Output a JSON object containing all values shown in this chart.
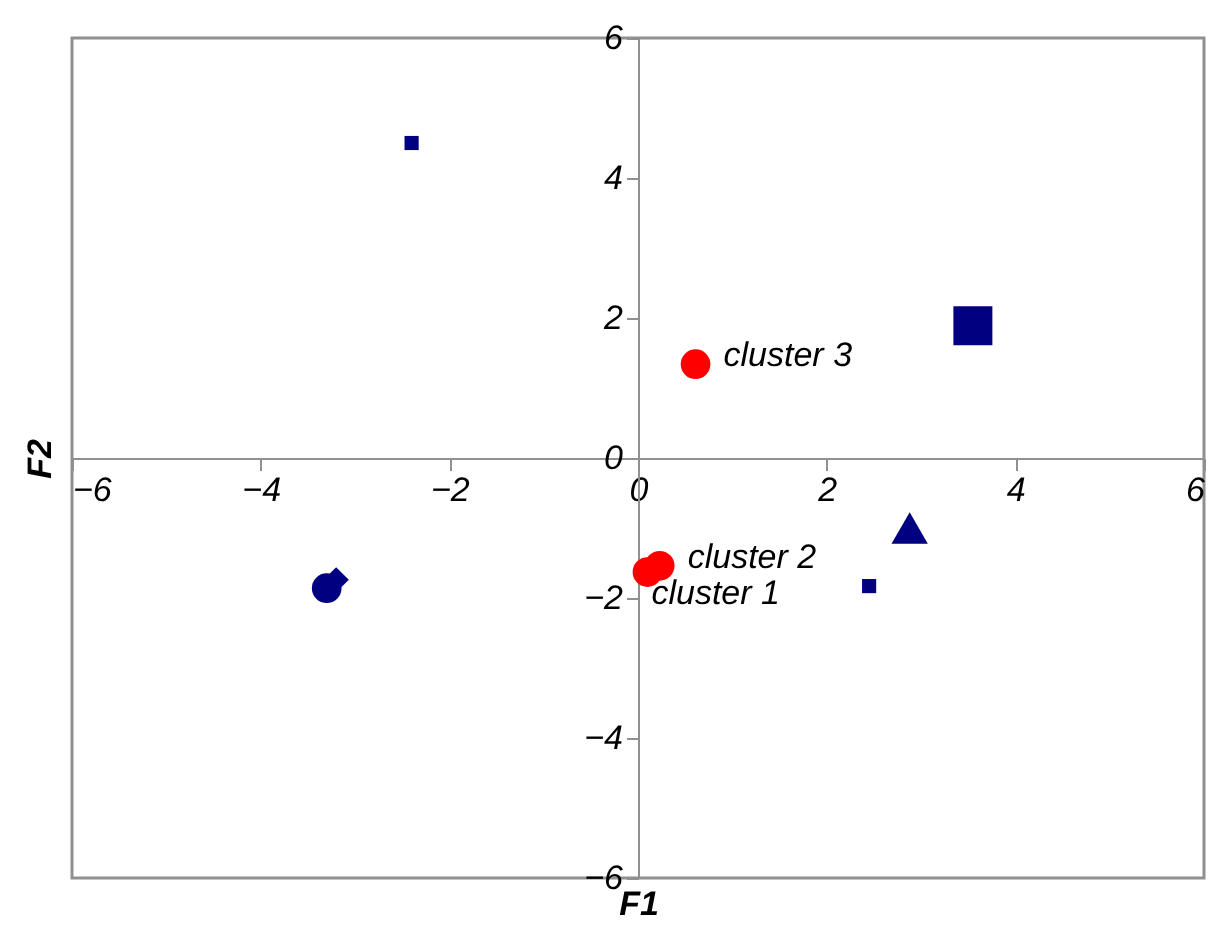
{
  "chart_data": {
    "type": "scatter",
    "xlabel": "F1",
    "ylabel": "F2",
    "xlim": [
      -6,
      6
    ],
    "ylim": [
      -6,
      6
    ],
    "xticks": [
      -6,
      -4,
      -2,
      0,
      2,
      4,
      6
    ],
    "yticks": [
      -6,
      -4,
      -2,
      0,
      2,
      4,
      6
    ],
    "grid": false,
    "series": [
      {
        "color": "#000080",
        "marker": "square",
        "x": [
          -2.4,
          2.45
        ],
        "values": [
          4.5,
          -1.83
        ]
      },
      {
        "color": "#000080",
        "marker": "circle",
        "x": [
          -3.3
        ],
        "values": [
          -1.86
        ]
      },
      {
        "color": "#000080",
        "marker": "diamond",
        "x": [
          -3.2
        ],
        "values": [
          -1.74
        ]
      },
      {
        "color": "#000080",
        "marker": "square",
        "x": [
          3.55
        ],
        "values": [
          1.89
        ]
      },
      {
        "color": "#000080",
        "marker": "triangle",
        "x": [
          2.88
        ],
        "values": [
          -1.0
        ]
      },
      {
        "color": "#ff0000",
        "marker": "circle",
        "x": [
          0.1,
          0.23,
          0.61
        ],
        "values": [
          -1.63,
          -1.54,
          1.34
        ]
      }
    ],
    "annotations": [
      {
        "text": "cluster 1",
        "x": 0.1,
        "y": -1.63
      },
      {
        "text": "cluster 2",
        "x": 0.23,
        "y": -1.54
      },
      {
        "text": "cluster 3",
        "x": 0.61,
        "y": 1.34
      }
    ]
  }
}
